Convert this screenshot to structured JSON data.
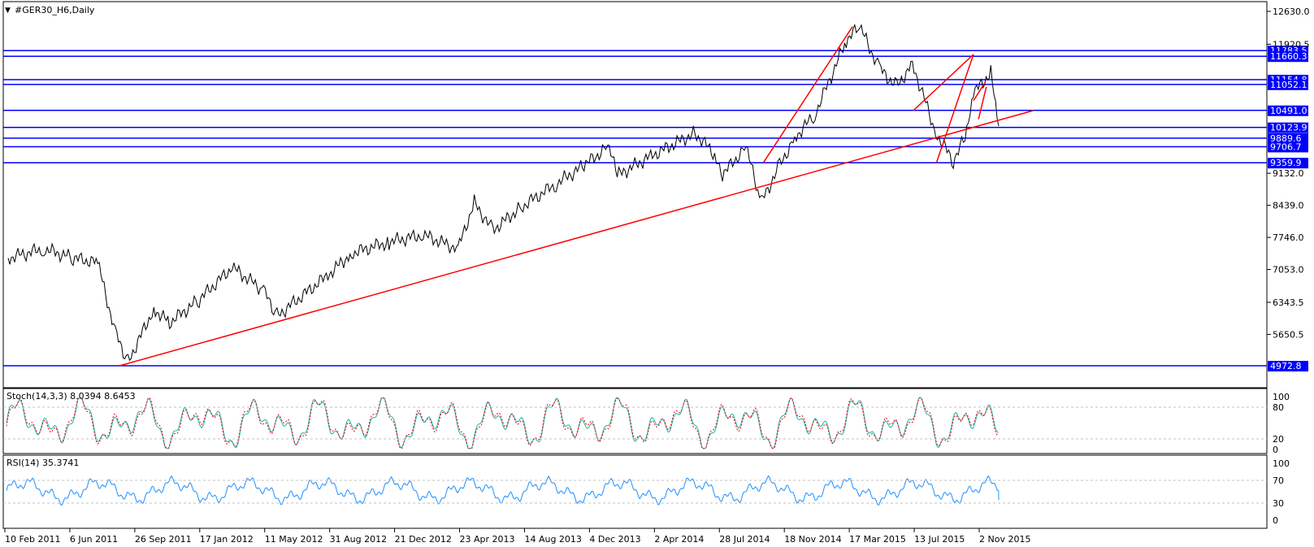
{
  "window": {
    "title": "#GER30_H6,Daily",
    "stoch_label": "Stoch(14,3,3) 8.0394 8.6453",
    "rsi_label": "RSI(14) 35.3741"
  },
  "colors": {
    "background": "#ffffff",
    "price_line": "#000000",
    "level_line": "#0000ff",
    "trend_line": "#ff0000",
    "stoch_main": "#20b2aa",
    "stoch_signal": "#ff0000",
    "rsi_line": "#1e90ff",
    "guide_line": "#c0c0c0"
  },
  "chart_data": {
    "type": "line",
    "title": "#GER30_H6,Daily",
    "price_axis": {
      "ticks": [
        12630.0,
        11920.5,
        9132.0,
        8439.0,
        7746.0,
        7053.0,
        6343.5,
        5650.5
      ],
      "ylim": [
        4972.8,
        12630.0
      ]
    },
    "horizontal_levels": [
      11783.5,
      11660.3,
      11154.8,
      11052.1,
      10491.0,
      10123.9,
      9889.6,
      9706.7,
      9359.9,
      4972.8
    ],
    "level_labels": [
      "11783.5",
      "11660.3",
      "11154.8",
      "11052.1",
      "10491.0",
      "10123.9",
      "9889.6",
      "9706.7",
      "9359.9",
      "4972.8"
    ],
    "date_axis": [
      "10 Feb 2011",
      "6 Jun 2011",
      "26 Sep 2011",
      "17 Jan 2012",
      "11 May 2012",
      "31 Aug 2012",
      "21 Dec 2012",
      "23 Apr 2013",
      "14 Aug 2013",
      "4 Dec 2013",
      "2 Apr 2014",
      "28 Jul 2014",
      "18 Nov 2014",
      "17 Mar 2015",
      "13 Jul 2015",
      "2 Nov 2015"
    ],
    "price_series": {
      "name": "#GER30",
      "dates": [
        "2011-02-10",
        "2011-04-15",
        "2011-06-06",
        "2011-07-20",
        "2011-08-20",
        "2011-09-12",
        "2011-10-28",
        "2011-11-25",
        "2012-01-17",
        "2012-03-16",
        "2012-05-11",
        "2012-06-04",
        "2012-08-31",
        "2012-10-15",
        "2012-12-21",
        "2013-02-20",
        "2013-04-23",
        "2013-05-22",
        "2013-06-24",
        "2013-08-14",
        "2013-10-15",
        "2013-12-04",
        "2014-01-15",
        "2014-02-04",
        "2014-04-02",
        "2014-06-20",
        "2014-07-28",
        "2014-08-08",
        "2014-09-19",
        "2014-10-16",
        "2014-11-18",
        "2014-12-15",
        "2015-01-20",
        "2015-03-17",
        "2015-04-10",
        "2015-05-15",
        "2015-06-15",
        "2015-07-13",
        "2015-08-24",
        "2015-09-24",
        "2015-10-15",
        "2015-11-02",
        "2015-11-30",
        "2015-12-14"
      ],
      "values": [
        7300,
        7500,
        7300,
        7200,
        5700,
        5050,
        6200,
        5900,
        6400,
        7100,
        6600,
        6050,
        6900,
        7400,
        7650,
        7800,
        7500,
        8500,
        7900,
        8400,
        8900,
        9300,
        9700,
        9100,
        9500,
        10000,
        9500,
        9100,
        9700,
        8500,
        9300,
        9900,
        10400,
        12000,
        12300,
        11400,
        11000,
        11500,
        10000,
        9400,
        9900,
        10900,
        11300,
        10150
      ]
    },
    "stochastic": {
      "name": "Stoch(14,3,3)",
      "main": 8.0394,
      "signal": 8.6453,
      "levels": [
        80,
        20
      ],
      "range": [
        0,
        100
      ]
    },
    "rsi": {
      "name": "RSI(14)",
      "value": 35.3741,
      "levels": [
        70,
        30
      ],
      "range": [
        0,
        100
      ]
    }
  }
}
